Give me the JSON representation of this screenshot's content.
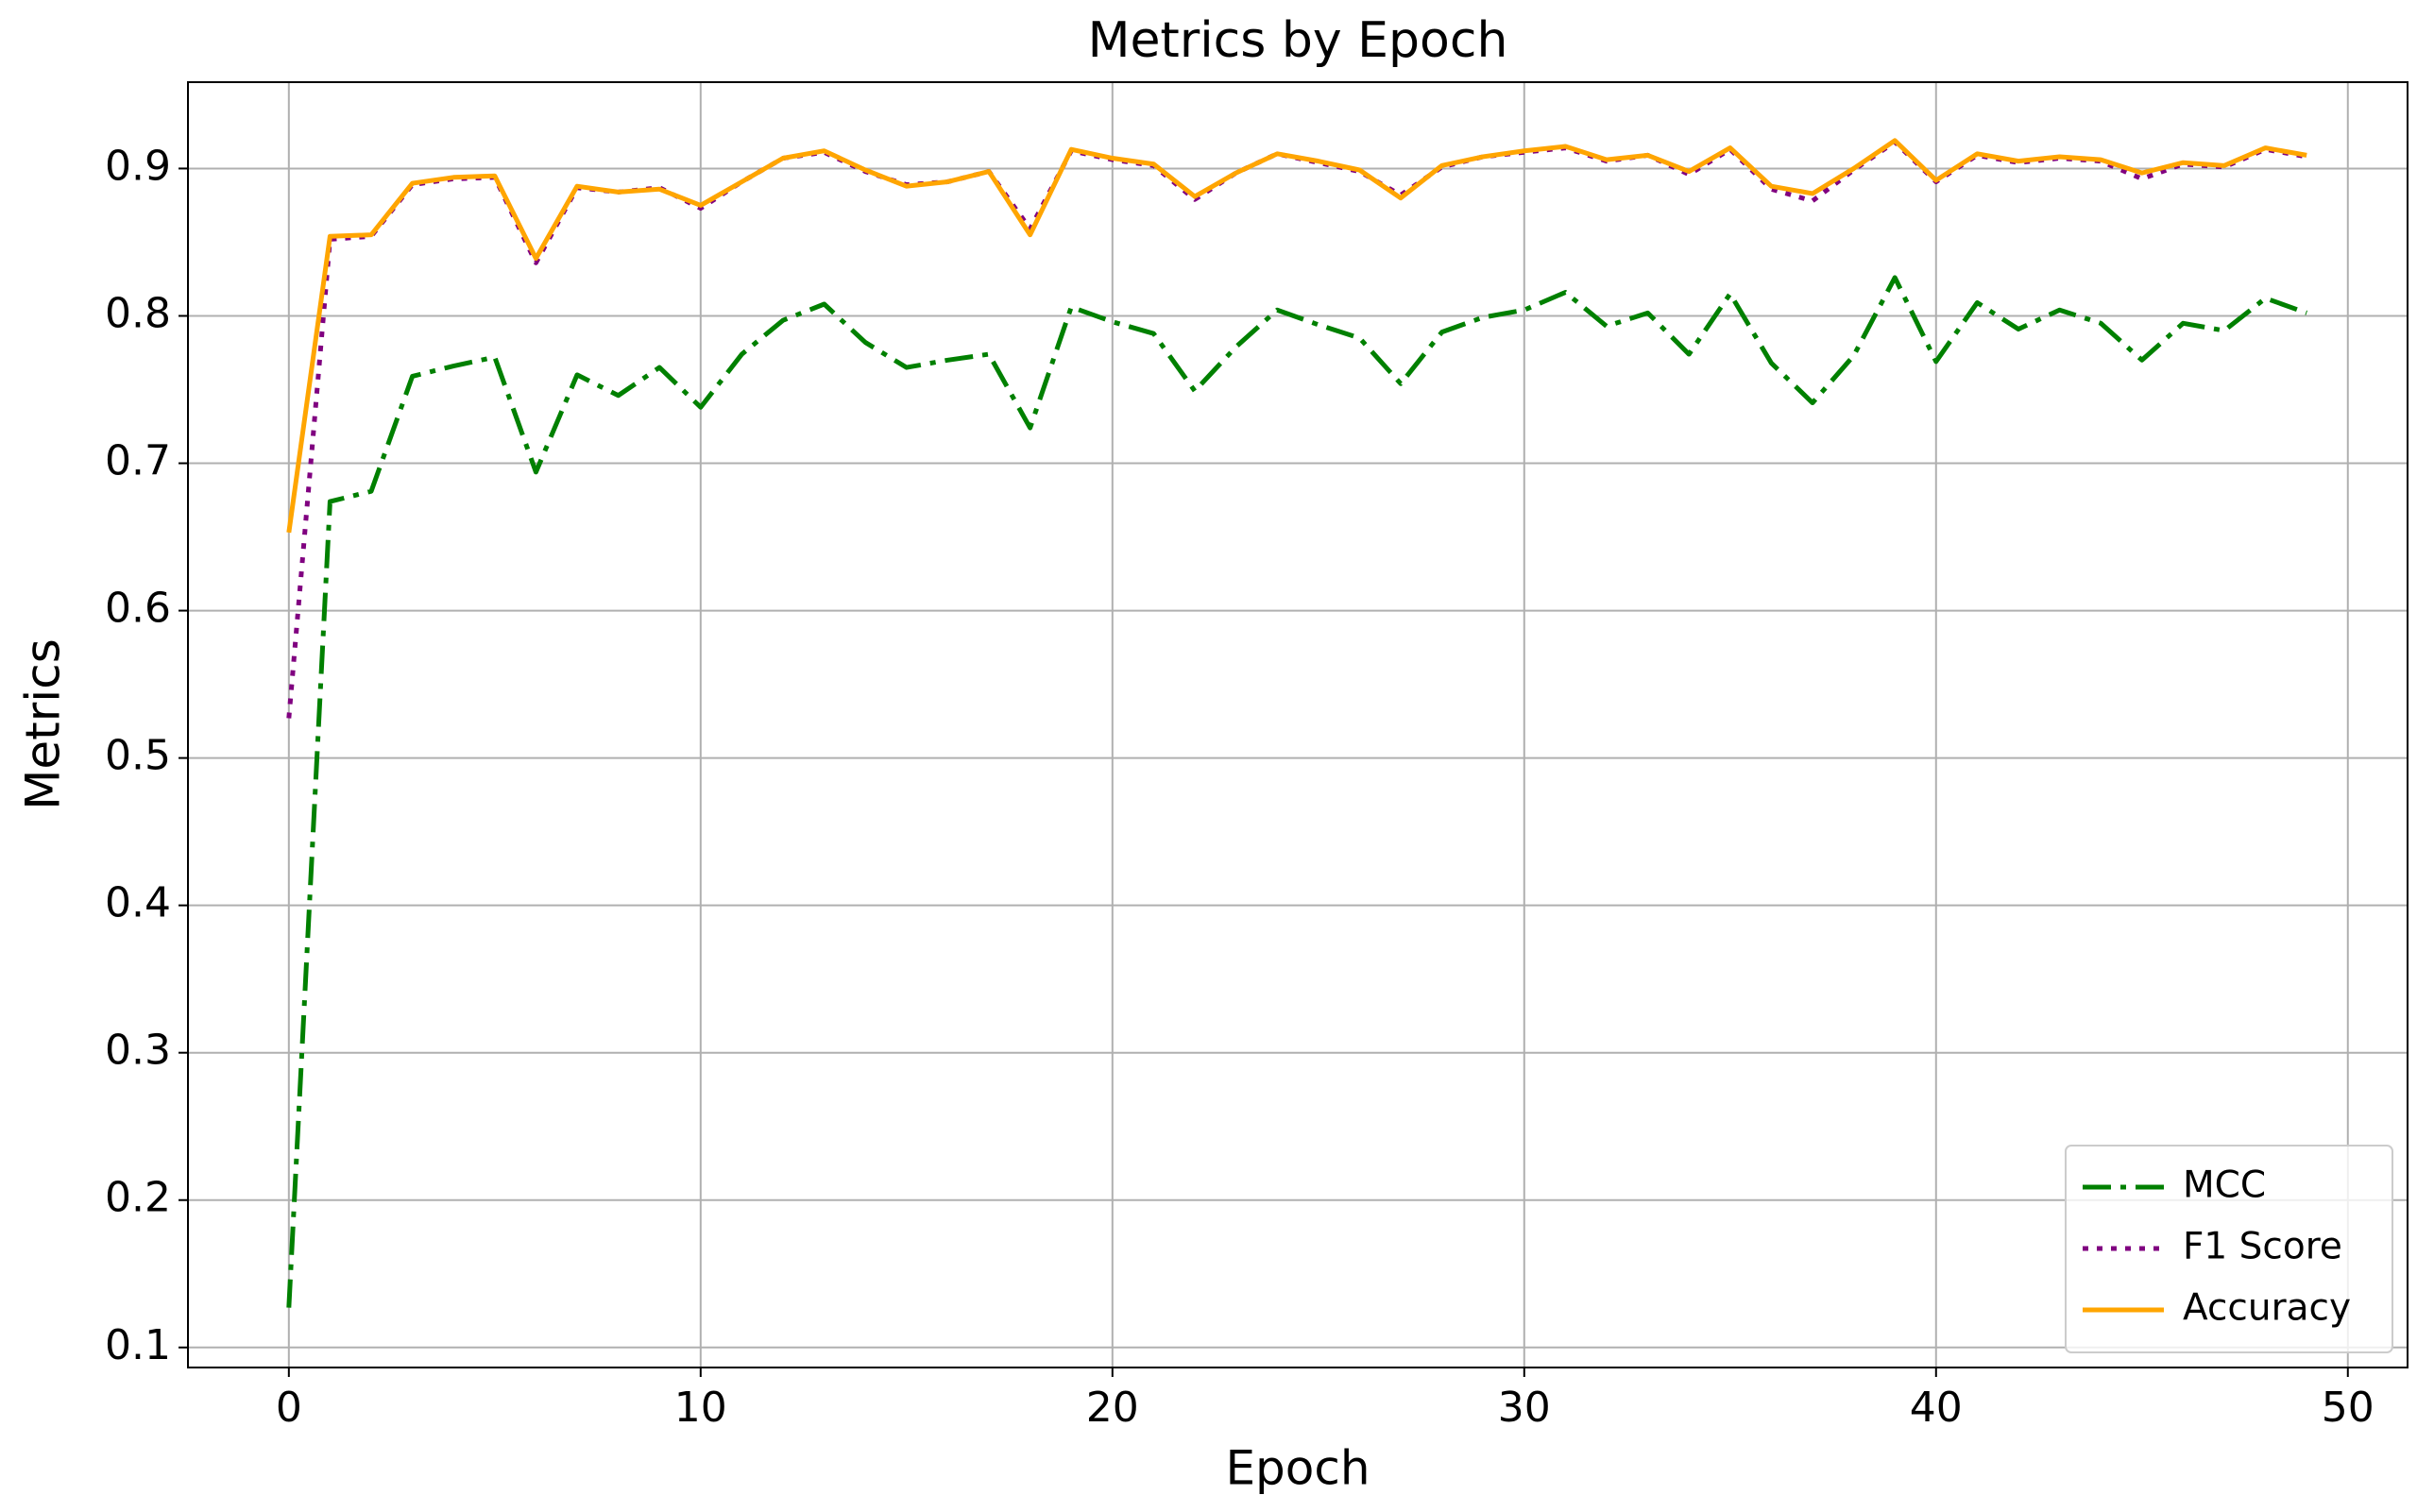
{
  "chart_data": {
    "type": "line",
    "title": "Metrics by Epoch",
    "xlabel": "Epoch",
    "ylabel": "Metrics",
    "x": [
      0,
      1,
      2,
      3,
      4,
      5,
      6,
      7,
      8,
      9,
      10,
      11,
      12,
      13,
      14,
      15,
      16,
      17,
      18,
      19,
      20,
      21,
      22,
      23,
      24,
      25,
      26,
      27,
      28,
      29,
      30,
      31,
      32,
      33,
      34,
      35,
      36,
      37,
      38,
      39,
      40,
      41,
      42,
      43,
      44,
      45,
      46,
      47,
      48,
      49
    ],
    "series": [
      {
        "name": "MCC",
        "color": "#008000",
        "linestyle": "dashdot",
        "values": [
          0.127,
          0.674,
          0.681,
          0.759,
          0.766,
          0.772,
          0.694,
          0.76,
          0.746,
          0.765,
          0.738,
          0.774,
          0.797,
          0.808,
          0.782,
          0.765,
          0.77,
          0.774,
          0.724,
          0.806,
          0.796,
          0.788,
          0.749,
          0.779,
          0.804,
          0.794,
          0.785,
          0.754,
          0.789,
          0.799,
          0.804,
          0.816,
          0.793,
          0.802,
          0.774,
          0.815,
          0.768,
          0.741,
          0.773,
          0.826,
          0.769,
          0.809,
          0.791,
          0.804,
          0.795,
          0.77,
          0.795,
          0.79,
          0.812,
          0.802
        ]
      },
      {
        "name": "F1 Score",
        "color": "#800080",
        "linestyle": "dotted",
        "values": [
          0.527,
          0.852,
          0.854,
          0.889,
          0.893,
          0.894,
          0.836,
          0.887,
          0.884,
          0.887,
          0.873,
          0.891,
          0.907,
          0.911,
          0.898,
          0.889,
          0.891,
          0.898,
          0.859,
          0.912,
          0.906,
          0.902,
          0.879,
          0.897,
          0.91,
          0.904,
          0.898,
          0.882,
          0.901,
          0.908,
          0.911,
          0.914,
          0.905,
          0.909,
          0.896,
          0.913,
          0.886,
          0.878,
          0.899,
          0.918,
          0.891,
          0.909,
          0.904,
          0.907,
          0.905,
          0.893,
          0.903,
          0.901,
          0.913,
          0.908
        ]
      },
      {
        "name": "Accuracy",
        "color": "#ffa500",
        "linestyle": "solid",
        "values": [
          0.653,
          0.854,
          0.855,
          0.89,
          0.894,
          0.895,
          0.839,
          0.888,
          0.884,
          0.886,
          0.875,
          0.891,
          0.907,
          0.912,
          0.899,
          0.888,
          0.891,
          0.898,
          0.855,
          0.913,
          0.907,
          0.903,
          0.881,
          0.897,
          0.91,
          0.905,
          0.899,
          0.88,
          0.902,
          0.908,
          0.912,
          0.915,
          0.906,
          0.909,
          0.898,
          0.914,
          0.888,
          0.883,
          0.9,
          0.919,
          0.892,
          0.91,
          0.905,
          0.908,
          0.906,
          0.897,
          0.904,
          0.902,
          0.914,
          0.909
        ]
      }
    ],
    "xlim": [
      -2.45,
      51.45
    ],
    "ylim": [
      0.0864,
      0.9586
    ],
    "xticks": [
      0,
      10,
      20,
      30,
      40,
      50
    ],
    "yticks": [
      0.1,
      0.2,
      0.3,
      0.4,
      0.5,
      0.6,
      0.7,
      0.8,
      0.9
    ],
    "grid": true,
    "legend": "lower right"
  }
}
